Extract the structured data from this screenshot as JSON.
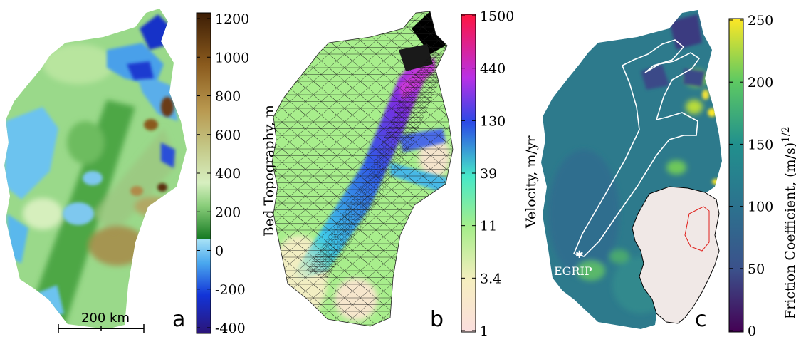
{
  "chart_data": [
    {
      "panel": "a",
      "type": "heatmap",
      "colorbar_label": "Bed Topography, m",
      "colorbar_ticks": [
        "1200",
        "1000",
        "800",
        "600",
        "400",
        "200",
        "0",
        "-200",
        "-400"
      ],
      "colorbar_range": [
        -500,
        1200
      ],
      "scale_bar_label": "200 km"
    },
    {
      "panel": "b",
      "type": "heatmap",
      "colorbar_label": "Velocity, m/yr",
      "colorbar_ticks": [
        "1500",
        "440",
        "130",
        "39",
        "11",
        "3.4",
        "1"
      ],
      "colorbar_range": [
        1,
        1500
      ],
      "log_scale": true,
      "mesh_overlay": true
    },
    {
      "panel": "c",
      "type": "heatmap",
      "colorbar_label": "Friction Coefficient, (m/s)",
      "colorbar_label_superscript": "1/2",
      "colorbar_ticks": [
        "250",
        "200",
        "150",
        "100",
        "50",
        "0"
      ],
      "colorbar_range": [
        0,
        250
      ],
      "site_label": "EGRIP",
      "inset": "Greenland outline with basin highlighted in red"
    }
  ],
  "colors": {
    "inset_fill": "#f0e8e6",
    "inset_basin": "#e0201c",
    "contour": "#ffffff"
  }
}
